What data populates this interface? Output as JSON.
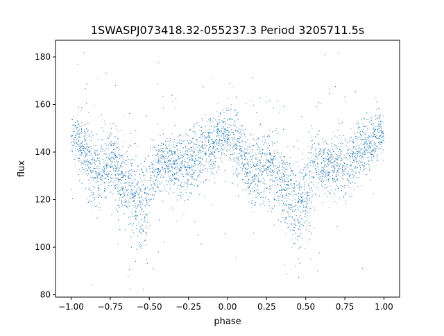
{
  "chart_data": {
    "type": "scatter",
    "title": "1SWASPJ073418.32-055237.3 Period 3205711.5s",
    "xlabel": "phase",
    "ylabel": "flux",
    "xlim": [
      -1.1,
      1.1
    ],
    "ylim": [
      79,
      187
    ],
    "xticks": [
      -1.0,
      -0.75,
      -0.5,
      -0.25,
      0.0,
      0.25,
      0.5,
      0.75,
      1.0
    ],
    "xtick_labels": [
      "−1.00",
      "−0.75",
      "−0.50",
      "−0.25",
      "0.00",
      "0.25",
      "0.50",
      "0.75",
      "1.00"
    ],
    "yticks": [
      80,
      100,
      120,
      140,
      160,
      180
    ],
    "ytick_labels": [
      "80",
      "100",
      "120",
      "140",
      "160",
      "180"
    ],
    "grid": false,
    "legend": "none",
    "marker_color": "#1f77b4",
    "series": [
      {
        "description": "folded light curve, phase -1 to 1 (pattern repeats every 1.0 in phase)",
        "x": [
          -1.0,
          -0.98,
          -0.96,
          -0.94,
          -0.92,
          -0.9,
          -0.88,
          -0.86,
          -0.84,
          -0.82,
          -0.8,
          -0.78,
          -0.76,
          -0.74,
          -0.72,
          -0.7,
          -0.68,
          -0.66,
          -0.64,
          -0.62,
          -0.6,
          -0.58,
          -0.56,
          -0.54,
          -0.52,
          -0.5,
          -0.48,
          -0.46,
          -0.44,
          -0.42,
          -0.4,
          -0.38,
          -0.36,
          -0.34,
          -0.32,
          -0.3,
          -0.28,
          -0.26,
          -0.24,
          -0.22,
          -0.2,
          -0.18,
          -0.16,
          -0.14,
          -0.12,
          -0.1,
          -0.08,
          -0.06,
          -0.04,
          -0.02,
          0.0,
          0.02,
          0.04,
          0.06,
          0.08,
          0.1,
          0.12,
          0.14,
          0.16,
          0.18,
          0.2,
          0.22,
          0.24,
          0.26,
          0.28,
          0.3,
          0.32,
          0.34,
          0.36,
          0.38,
          0.4,
          0.42,
          0.44,
          0.46,
          0.48,
          0.5,
          0.52,
          0.54,
          0.56,
          0.58,
          0.6,
          0.62,
          0.64,
          0.66,
          0.68,
          0.7,
          0.72,
          0.74,
          0.76,
          0.78,
          0.8,
          0.82,
          0.84,
          0.86,
          0.88,
          0.9,
          0.92,
          0.94,
          0.96,
          0.98,
          1.0
        ],
        "y": [
          146,
          147,
          145,
          143,
          140,
          137,
          134,
          132,
          131,
          130,
          132,
          134,
          136,
          137,
          135,
          132,
          130,
          128,
          126,
          123,
          121,
          119,
          117,
          116,
          118,
          122,
          127,
          132,
          135,
          136,
          135,
          134,
          134,
          135,
          136,
          135,
          134,
          133,
          134,
          136,
          138,
          139,
          140,
          141,
          142,
          143,
          144,
          146,
          147,
          147,
          146,
          147,
          145,
          143,
          140,
          137,
          134,
          132,
          131,
          130,
          132,
          134,
          136,
          137,
          135,
          132,
          130,
          128,
          126,
          123,
          121,
          119,
          117,
          116,
          118,
          122,
          127,
          132,
          135,
          136,
          135,
          134,
          134,
          135,
          136,
          135,
          134,
          133,
          134,
          136,
          138,
          139,
          140,
          141,
          142,
          143,
          144,
          146,
          147,
          147,
          146
        ],
        "spread": [
          6,
          7,
          8,
          8,
          8,
          9,
          10,
          10,
          10,
          10,
          9,
          9,
          9,
          9,
          9,
          10,
          10,
          10,
          11,
          11,
          12,
          12,
          13,
          13,
          12,
          12,
          11,
          10,
          9,
          8,
          8,
          8,
          8,
          8,
          9,
          9,
          9,
          9,
          9,
          9,
          9,
          9,
          8,
          8,
          8,
          8,
          8,
          7,
          7,
          6,
          6,
          7,
          8,
          8,
          8,
          9,
          10,
          10,
          10,
          10,
          9,
          9,
          9,
          9,
          9,
          10,
          10,
          10,
          11,
          11,
          12,
          12,
          13,
          13,
          12,
          12,
          11,
          10,
          9,
          8,
          8,
          8,
          8,
          8,
          9,
          9,
          9,
          9,
          9,
          9,
          9,
          9,
          8,
          8,
          8,
          8,
          8,
          7,
          7,
          6,
          6
        ],
        "n_points": 6000
      }
    ]
  }
}
